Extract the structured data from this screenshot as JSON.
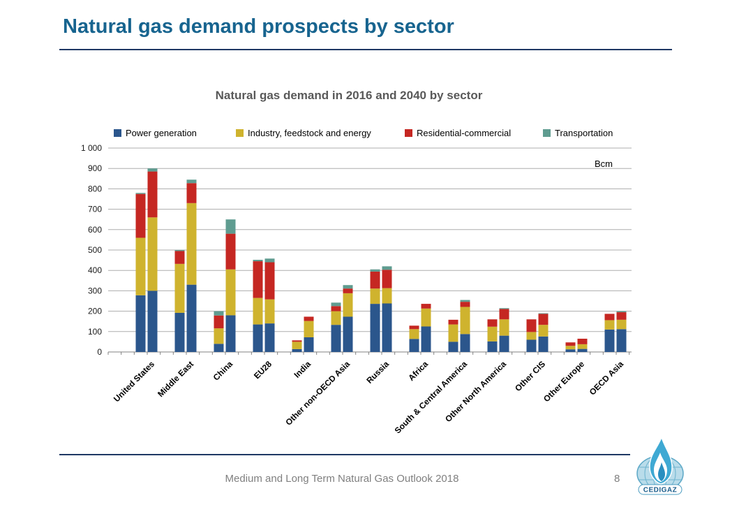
{
  "slide": {
    "title": "Natural gas demand prospects by sector",
    "title_color": "#17648f",
    "rule_color": "#1f3864",
    "footer_text": "Medium and Long Term Natural Gas Outlook 2018",
    "page_number": "8",
    "logo_text": "CEDIGAZ"
  },
  "chart_data": {
    "type": "bar",
    "stacked": true,
    "title": "Natural gas demand in 2016 and 2040 by sector",
    "unit_label": "Bcm",
    "legend_position": "top",
    "grid": true,
    "years": [
      "2016",
      "2040"
    ],
    "sectors": [
      {
        "name": "Power generation",
        "color": "#2b568c"
      },
      {
        "name": "Industry, feedstock and energy",
        "color": "#cfb32e"
      },
      {
        "name": "Residential-commercial",
        "color": "#c52722"
      },
      {
        "name": "Transportation",
        "color": "#5f9c90"
      }
    ],
    "categories": [
      "United States",
      "Middle East",
      "China",
      "EU28",
      "India",
      "Other non-OECD Asia",
      "Russia",
      "Africa",
      "South & Central America",
      "Other North America",
      "Other CIS",
      "Other Europe",
      "OECD Asia"
    ],
    "values_note": "values[category][year][sector] in Bcm, years = [2016, 2040], sectors = [power, industry, residential, transportation]",
    "values": [
      [
        [
          278,
          282,
          215,
          5
        ],
        [
          300,
          360,
          225,
          15
        ]
      ],
      [
        [
          192,
          240,
          63,
          5
        ],
        [
          330,
          400,
          98,
          17
        ]
      ],
      [
        [
          40,
          76,
          63,
          21
        ],
        [
          180,
          225,
          175,
          70
        ]
      ],
      [
        [
          135,
          130,
          180,
          7
        ],
        [
          140,
          118,
          182,
          18
        ]
      ],
      [
        [
          14,
          36,
          7,
          0
        ],
        [
          72,
          80,
          21,
          0
        ]
      ],
      [
        [
          133,
          67,
          25,
          17
        ],
        [
          173,
          115,
          23,
          17
        ]
      ],
      [
        [
          236,
          75,
          83,
          11
        ],
        [
          238,
          75,
          90,
          17
        ]
      ],
      [
        [
          64,
          48,
          17,
          0
        ],
        [
          125,
          88,
          23,
          0
        ]
      ],
      [
        [
          50,
          85,
          23,
          0
        ],
        [
          88,
          133,
          25,
          9
        ]
      ],
      [
        [
          52,
          72,
          36,
          0
        ],
        [
          80,
          80,
          51,
          4
        ]
      ],
      [
        [
          60,
          38,
          62,
          0
        ],
        [
          76,
          57,
          54,
          3
        ]
      ],
      [
        [
          13,
          17,
          17,
          0
        ],
        [
          15,
          23,
          27,
          0
        ]
      ],
      [
        [
          110,
          46,
          31,
          0
        ],
        [
          112,
          46,
          37,
          5
        ]
      ]
    ],
    "y_axis": {
      "min": 0,
      "max": 1000,
      "tick_interval": 100,
      "tick_labels": [
        "0",
        "100",
        "200",
        "300",
        "400",
        "500",
        "600",
        "700",
        "800",
        "900",
        "1 000"
      ]
    }
  }
}
